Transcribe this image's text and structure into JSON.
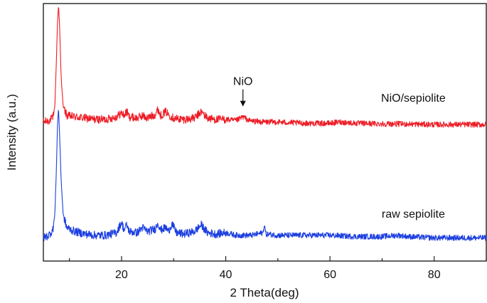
{
  "chart_data": {
    "type": "line",
    "title": "",
    "xlabel": "2 Theta(deg)",
    "ylabel": "Intensity (a.u.)",
    "xlim": [
      5,
      90
    ],
    "ylim": [
      0,
      100
    ],
    "x_ticks": [
      20,
      40,
      60,
      80
    ],
    "x_tick_labels": [
      "20",
      "40",
      "60",
      "80"
    ],
    "y_ticks_shown": false,
    "grid": false,
    "legend": "none (series labelled directly on the plot)",
    "series": [
      {
        "name": "NiO/sepiolite",
        "color": "#ee1c25",
        "points": [
          [
            5,
            54
          ],
          [
            6,
            54.5
          ],
          [
            6.8,
            55.5
          ],
          [
            7.2,
            60
          ],
          [
            7.5,
            78
          ],
          [
            7.7,
            92
          ],
          [
            7.9,
            99.5
          ],
          [
            8.1,
            92
          ],
          [
            8.4,
            72
          ],
          [
            8.8,
            60
          ],
          [
            9.5,
            56.5
          ],
          [
            11,
            56
          ],
          [
            13,
            55.5
          ],
          [
            15,
            55
          ],
          [
            17,
            55
          ],
          [
            19,
            56
          ],
          [
            20,
            57.5
          ],
          [
            20.5,
            56.5
          ],
          [
            21,
            58
          ],
          [
            21.5,
            56
          ],
          [
            23,
            55.5
          ],
          [
            24,
            56.5
          ],
          [
            25,
            55.5
          ],
          [
            26.5,
            57
          ],
          [
            27,
            59
          ],
          [
            27.5,
            56.5
          ],
          [
            28.5,
            58
          ],
          [
            29,
            57
          ],
          [
            30,
            55.5
          ],
          [
            32,
            55
          ],
          [
            34,
            55.5
          ],
          [
            35.3,
            58
          ],
          [
            36.5,
            55.5
          ],
          [
            38,
            55
          ],
          [
            40,
            55
          ],
          [
            42,
            54.5
          ],
          [
            43.3,
            56
          ],
          [
            44.5,
            54.5
          ],
          [
            47,
            54
          ],
          [
            50,
            54
          ],
          [
            55,
            53.5
          ],
          [
            60,
            53.5
          ],
          [
            62,
            54
          ],
          [
            65,
            53.5
          ],
          [
            70,
            53.3
          ],
          [
            75,
            53.2
          ],
          [
            80,
            53
          ],
          [
            85,
            53
          ],
          [
            90,
            53
          ]
        ]
      },
      {
        "name": "raw sepiolite",
        "color": "#1c3fe0",
        "points": [
          [
            5,
            9
          ],
          [
            6,
            10
          ],
          [
            6.8,
            12
          ],
          [
            7.2,
            18
          ],
          [
            7.5,
            36
          ],
          [
            7.7,
            52
          ],
          [
            7.9,
            59.5
          ],
          [
            8.1,
            50
          ],
          [
            8.4,
            32
          ],
          [
            8.8,
            18
          ],
          [
            9.5,
            13
          ],
          [
            11,
            11.5
          ],
          [
            13,
            10.5
          ],
          [
            15,
            10
          ],
          [
            17,
            10
          ],
          [
            19,
            11
          ],
          [
            20,
            15
          ],
          [
            20.5,
            12
          ],
          [
            21,
            14
          ],
          [
            21.5,
            11.5
          ],
          [
            23,
            11
          ],
          [
            24,
            13
          ],
          [
            25,
            11.5
          ],
          [
            26.5,
            12.5
          ],
          [
            27,
            15
          ],
          [
            27.5,
            12
          ],
          [
            28.5,
            13
          ],
          [
            29,
            11.5
          ],
          [
            29.7,
            14.5
          ],
          [
            30.5,
            11
          ],
          [
            32,
            10.5
          ],
          [
            34,
            11.5
          ],
          [
            35.3,
            14
          ],
          [
            36.5,
            11
          ],
          [
            38,
            10.5
          ],
          [
            40,
            11
          ],
          [
            42,
            10
          ],
          [
            45,
            10
          ],
          [
            47.2,
            11
          ],
          [
            47.4,
            14.5
          ],
          [
            47.7,
            10.5
          ],
          [
            50,
            10
          ],
          [
            55,
            10
          ],
          [
            60,
            10
          ],
          [
            65,
            9.5
          ],
          [
            70,
            9.5
          ],
          [
            73,
            10
          ],
          [
            75,
            9.5
          ],
          [
            80,
            9
          ],
          [
            85,
            9
          ],
          [
            90,
            9
          ]
        ]
      }
    ],
    "annotations": [
      {
        "text": "NiO/sepiolite",
        "x": 76,
        "y": 63.5
      },
      {
        "text": "raw sepiolite",
        "x": 76,
        "y": 18.5
      },
      {
        "text": "NiO",
        "x": 43.3,
        "y": 70,
        "arrow_to_y": 60
      }
    ]
  }
}
